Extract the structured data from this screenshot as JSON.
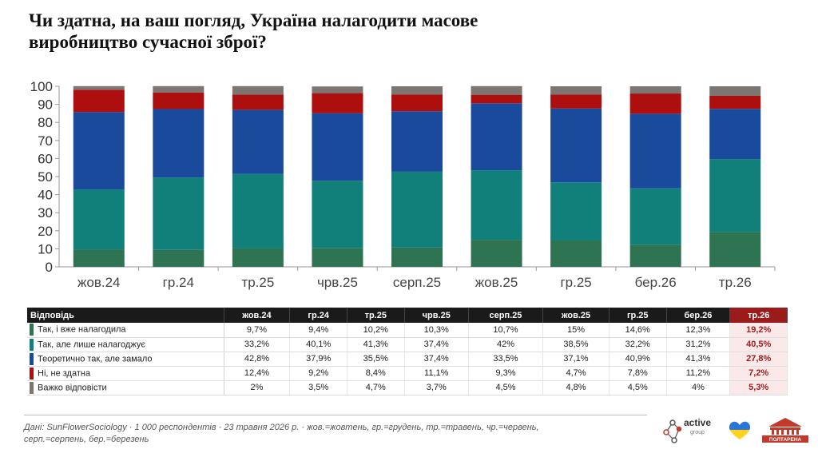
{
  "title_line1": "Чи здатна, на ваш погляд, Україна налагодити масове",
  "title_line2": "виробництво сучасної зброї?",
  "chart_data": {
    "type": "bar",
    "stacked": true,
    "categories": [
      "жов.24",
      "гр.24",
      "тр.25",
      "чрв.25",
      "серп.25",
      "жов.25",
      "гр.25",
      "бер.26",
      "тр.26"
    ],
    "ylim": [
      0,
      100
    ],
    "yticks": [
      0,
      10,
      20,
      30,
      40,
      50,
      60,
      70,
      80,
      90,
      100
    ],
    "grid": false,
    "legend": "table below",
    "series": [
      {
        "name": "Так, і вже налагодила",
        "color": "#2e7352",
        "values": [
          9.7,
          9.4,
          10.2,
          10.3,
          10.7,
          15,
          14.6,
          12.3,
          19.2
        ]
      },
      {
        "name": "Так, але лише налагоджує",
        "color": "#12807a",
        "values": [
          33.2,
          40.1,
          41.3,
          37.4,
          42,
          38.5,
          32.2,
          31.2,
          40.5
        ]
      },
      {
        "name": "Теоретично так, але замало",
        "color": "#1a4a9c",
        "values": [
          42.8,
          37.9,
          35.5,
          37.4,
          33.5,
          37.1,
          40.9,
          41.3,
          27.8
        ]
      },
      {
        "name": "Ні, не здатна",
        "color": "#ad0e0e",
        "values": [
          12.4,
          9.2,
          8.4,
          11.1,
          9.3,
          4.7,
          7.8,
          11.2,
          7.2
        ]
      },
      {
        "name": "Важко відповісти",
        "color": "#7c7572",
        "values": [
          2,
          3.5,
          4.7,
          3.7,
          4.5,
          4.8,
          4.5,
          4,
          5.3
        ]
      }
    ]
  },
  "table": {
    "header_label": "Відповідь",
    "columns": [
      "жов.24",
      "гр.24",
      "тр.25",
      "чрв.25",
      "серп.25",
      "жов.25",
      "гр.25",
      "бер.26",
      "тр.26"
    ],
    "highlight_color": "#9b1b1b",
    "rows": [
      {
        "label": "Так, і вже налагодила",
        "color": "#2e7352",
        "cells": [
          "9,7%",
          "9,4%",
          "10,2%",
          "10,3%",
          "10,7%",
          "15%",
          "14,6%",
          "12,3%",
          "19,2%"
        ]
      },
      {
        "label": "Так, але лише налагоджує",
        "color": "#12807a",
        "cells": [
          "33,2%",
          "40,1%",
          "41,3%",
          "37,4%",
          "42%",
          "38,5%",
          "32,2%",
          "31,2%",
          "40,5%"
        ]
      },
      {
        "label": "Теоретично так, але замало",
        "color": "#1a4a9c",
        "cells": [
          "42,8%",
          "37,9%",
          "35,5%",
          "37,4%",
          "33,5%",
          "37,1%",
          "40,9%",
          "41,3%",
          "27,8%"
        ]
      },
      {
        "label": "Ні, не здатна",
        "color": "#ad0e0e",
        "cells": [
          "12,4%",
          "9,2%",
          "8,4%",
          "11,1%",
          "9,3%",
          "4,7%",
          "7,8%",
          "11,2%",
          "7,2%"
        ]
      },
      {
        "label": "Важко відповісти",
        "color": "#7c7572",
        "cells": [
          "2%",
          "3,5%",
          "4,7%",
          "3,7%",
          "4,5%",
          "4,8%",
          "4,5%",
          "4%",
          "5,3%"
        ]
      }
    ]
  },
  "footer": {
    "line1": "Дані: SunFlowerSociology · 1 000 респондентів · 23 травня 2026 р. · жов.=жовтень, гр.=грудень, тр.=травень, чр.=червень,",
    "line2": "серп.=серпень, бер.=березень"
  },
  "logos": {
    "active": "active",
    "active_sub": "group",
    "active_icon": "molecule-icon",
    "ua_icon": "heart-icon",
    "poltarena": "ПОЛТАРЕНА"
  }
}
